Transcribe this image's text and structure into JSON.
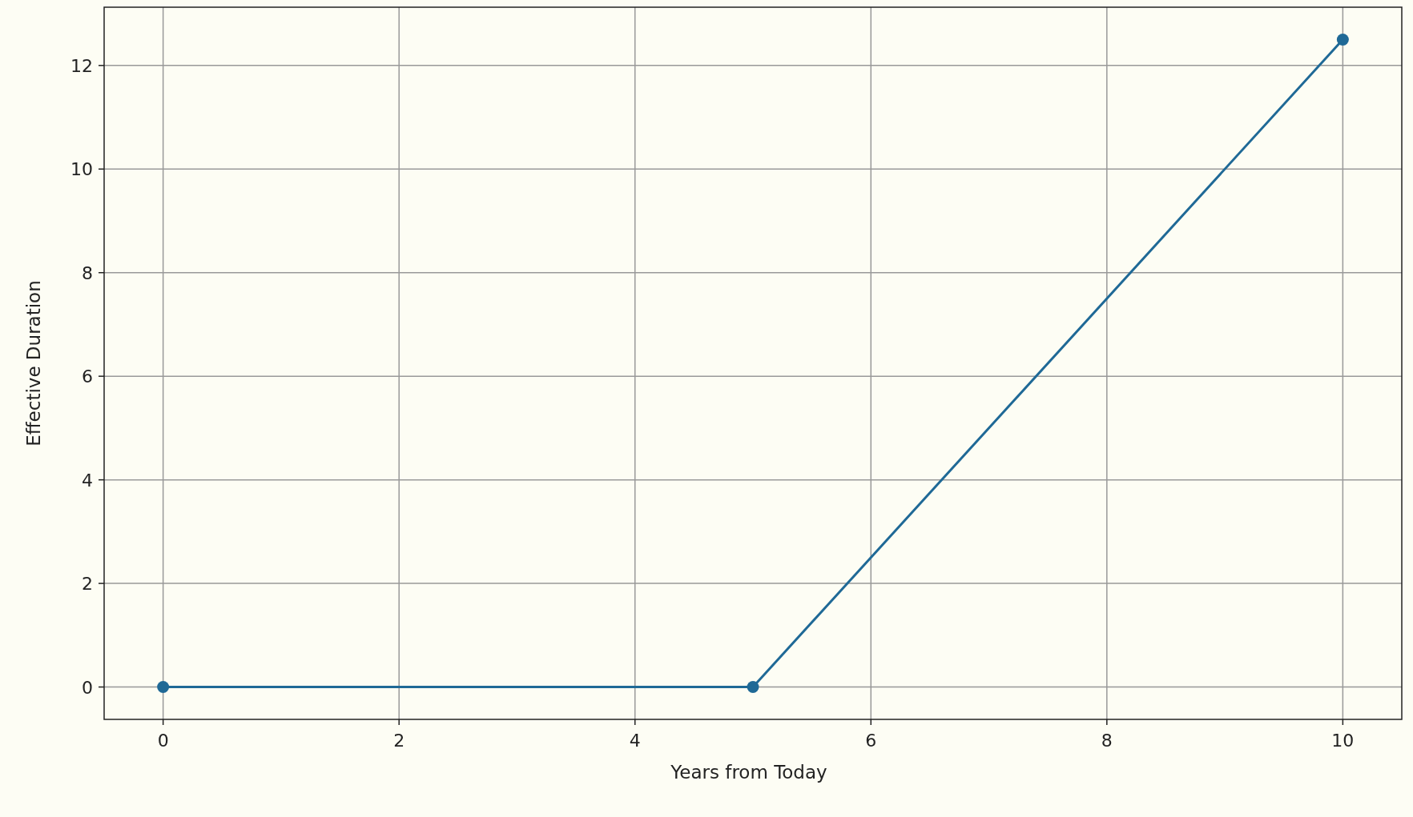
{
  "chart_data": {
    "type": "line",
    "xlabel": "Years from Today",
    "ylabel": "Effective Duration",
    "x": [
      0,
      5,
      10
    ],
    "series": [
      {
        "color": "#1f6996",
        "values": [
          0,
          0,
          12.5
        ]
      }
    ],
    "xlim": [
      -0.5,
      10.5
    ],
    "xticks": [
      0,
      2,
      4,
      6,
      8,
      10
    ],
    "ylim": [
      -0.625,
      13.125
    ],
    "yticks": [
      0,
      2,
      4,
      6,
      8,
      10,
      12
    ],
    "grid": true,
    "marker": "circle",
    "line_style": "solid"
  }
}
